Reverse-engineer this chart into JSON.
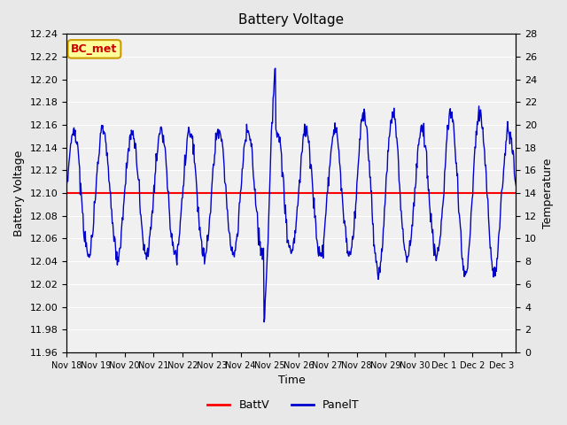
{
  "title": "Battery Voltage",
  "xlabel": "Time",
  "ylabel_left": "Battery Voltage",
  "ylabel_right": "Temperature",
  "ylim_left": [
    11.96,
    12.24
  ],
  "ylim_right": [
    0,
    28
  ],
  "yticks_left": [
    11.96,
    11.98,
    12.0,
    12.02,
    12.04,
    12.06,
    12.08,
    12.1,
    12.12,
    12.14,
    12.16,
    12.18,
    12.2,
    12.22,
    12.24
  ],
  "yticks_right": [
    0,
    2,
    4,
    6,
    8,
    10,
    12,
    14,
    16,
    18,
    20,
    22,
    24,
    26,
    28
  ],
  "battv_value": 12.1,
  "bg_color": "#e8e8e8",
  "plot_bg_color": "#f0f0f0",
  "grid_color": "#ffffff",
  "bc_met_label": "BC_met",
  "bc_met_bg": "#ffff99",
  "bc_met_border": "#cc9900",
  "bc_met_text_color": "#cc0000",
  "legend_items": [
    "BattV",
    "PanelT"
  ],
  "legend_colors": [
    "#ff0000",
    "#0000cc"
  ],
  "x_tick_labels": [
    "Nov 18",
    "Nov 19",
    "Nov 20",
    "Nov 21",
    "Nov 22",
    "Nov 23",
    "Nov 24",
    "Nov 25",
    "Nov 26",
    "Nov 27",
    "Nov 28",
    "Nov 29",
    "Nov 30",
    "Dec 1",
    "Dec 2",
    "Dec 3"
  ]
}
